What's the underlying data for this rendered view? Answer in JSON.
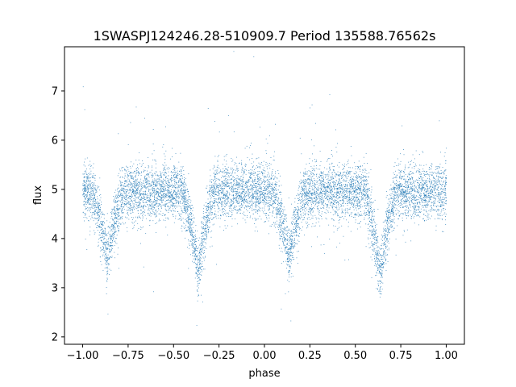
{
  "chart_data": {
    "type": "scatter",
    "title": "1SWASPJ124246.28-510909.7 Period 135588.76562s",
    "xlabel": "phase",
    "ylabel": "flux",
    "xlim": [
      -1.1,
      1.1
    ],
    "ylim": [
      1.85,
      7.9
    ],
    "x_ticks": [
      -1.0,
      -0.75,
      -0.5,
      -0.25,
      0.0,
      0.25,
      0.5,
      0.75,
      1.0
    ],
    "x_tick_labels": [
      "−1.00",
      "−0.75",
      "−0.50",
      "−0.25",
      "0.00",
      "0.25",
      "0.50",
      "0.75",
      "1.00"
    ],
    "y_ticks": [
      2,
      3,
      4,
      5,
      6,
      7
    ],
    "y_tick_labels": [
      "2",
      "3",
      "4",
      "5",
      "6",
      "7"
    ],
    "grid": false,
    "marker_color": "#1f77b4",
    "series": [
      {
        "description_type": "phase-folded light curve",
        "baseline_flux": 4.95,
        "scatter_sigma": 0.28,
        "eclipses": [
          {
            "phase": -0.865,
            "depth": 1.35,
            "half_width": 0.085
          },
          {
            "phase": -0.365,
            "depth": 1.65,
            "half_width": 0.085
          },
          {
            "phase": 0.135,
            "depth": 1.35,
            "half_width": 0.085
          },
          {
            "phase": 0.635,
            "depth": 1.65,
            "half_width": 0.085
          }
        ],
        "phase_range": [
          -1.0,
          1.0
        ],
        "point_count": 9000
      }
    ]
  }
}
